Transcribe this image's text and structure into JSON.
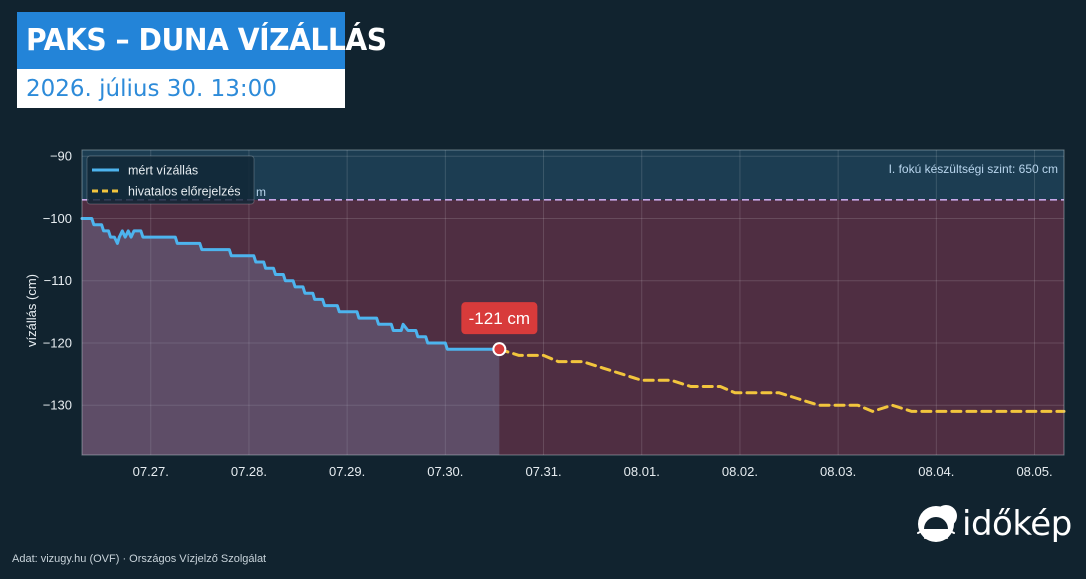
{
  "header": {
    "title": "PAKS – DUNA VÍZÁLLÁS",
    "subtitle": "2026. július 30. 13:00"
  },
  "chart_data": {
    "type": "line",
    "ylabel": "vízállás (cm)",
    "ylim": [
      -138,
      -89
    ],
    "yticks": [
      -90,
      -100,
      -110,
      -120,
      -130
    ],
    "xlim": [
      0,
      10
    ],
    "xtick_positions": [
      0.7,
      1.7,
      2.7,
      3.7,
      4.7,
      5.7,
      6.7,
      7.7,
      8.7,
      9.7
    ],
    "xtick_labels": [
      "07.27.",
      "07.28.",
      "07.29.",
      "07.30.",
      "07.31.",
      "08.01.",
      "08.02.",
      "08.03.",
      "08.04.",
      "08.05."
    ],
    "grid": true,
    "legend": {
      "placement": "top-left",
      "entries": [
        "mért vízállás",
        "hivatalos előrejelzés"
      ]
    },
    "threshold": {
      "y": -97,
      "label": "I. fokú készültségi szint: 650 cm",
      "hidden_label": "m"
    },
    "current": {
      "x": 4.25,
      "y": -121,
      "label": "-121 cm"
    },
    "series": [
      {
        "name": "mért vízállás",
        "color": "#4db4ee",
        "style": "solid",
        "points": [
          [
            0,
            -100
          ],
          [
            0.1,
            -100
          ],
          [
            0.12,
            -101
          ],
          [
            0.2,
            -101
          ],
          [
            0.22,
            -102
          ],
          [
            0.27,
            -102
          ],
          [
            0.29,
            -103
          ],
          [
            0.33,
            -103
          ],
          [
            0.36,
            -104
          ],
          [
            0.38,
            -103
          ],
          [
            0.41,
            -102
          ],
          [
            0.44,
            -103
          ],
          [
            0.47,
            -102
          ],
          [
            0.5,
            -103
          ],
          [
            0.53,
            -102
          ],
          [
            0.6,
            -102
          ],
          [
            0.62,
            -103
          ],
          [
            0.95,
            -103
          ],
          [
            0.97,
            -104
          ],
          [
            1.2,
            -104
          ],
          [
            1.22,
            -105
          ],
          [
            1.5,
            -105
          ],
          [
            1.52,
            -106
          ],
          [
            1.75,
            -106
          ],
          [
            1.77,
            -107
          ],
          [
            1.85,
            -107
          ],
          [
            1.87,
            -108
          ],
          [
            1.95,
            -108
          ],
          [
            1.97,
            -109
          ],
          [
            2.05,
            -109
          ],
          [
            2.07,
            -110
          ],
          [
            2.15,
            -110
          ],
          [
            2.17,
            -111
          ],
          [
            2.25,
            -111
          ],
          [
            2.27,
            -112
          ],
          [
            2.35,
            -112
          ],
          [
            2.37,
            -113
          ],
          [
            2.45,
            -113
          ],
          [
            2.47,
            -114
          ],
          [
            2.6,
            -114
          ],
          [
            2.62,
            -115
          ],
          [
            2.8,
            -115
          ],
          [
            2.82,
            -116
          ],
          [
            3.0,
            -116
          ],
          [
            3.02,
            -117
          ],
          [
            3.15,
            -117
          ],
          [
            3.17,
            -118
          ],
          [
            3.25,
            -118
          ],
          [
            3.27,
            -117
          ],
          [
            3.32,
            -118
          ],
          [
            3.4,
            -118
          ],
          [
            3.42,
            -119
          ],
          [
            3.5,
            -119
          ],
          [
            3.52,
            -120
          ],
          [
            3.7,
            -120
          ],
          [
            3.72,
            -121
          ],
          [
            4.25,
            -121
          ]
        ]
      },
      {
        "name": "hivatalos előrejelzés",
        "color": "#f2c53d",
        "style": "dashed",
        "points": [
          [
            4.25,
            -121
          ],
          [
            4.45,
            -122
          ],
          [
            4.7,
            -122
          ],
          [
            4.85,
            -123
          ],
          [
            5.1,
            -123
          ],
          [
            5.3,
            -124
          ],
          [
            5.5,
            -125
          ],
          [
            5.7,
            -126
          ],
          [
            6.0,
            -126
          ],
          [
            6.2,
            -127
          ],
          [
            6.5,
            -127
          ],
          [
            6.65,
            -128
          ],
          [
            7.1,
            -128
          ],
          [
            7.3,
            -129
          ],
          [
            7.5,
            -130
          ],
          [
            7.9,
            -130
          ],
          [
            8.05,
            -131
          ],
          [
            8.25,
            -130
          ],
          [
            8.45,
            -131
          ],
          [
            9.0,
            -131
          ],
          [
            9.3,
            -131
          ],
          [
            10.0,
            -131
          ]
        ]
      }
    ]
  },
  "footer": {
    "source": "Adat: vizugy.hu (OVF) · Országos Vízjelző Szolgálat",
    "logo_text": "időkép"
  },
  "colors": {
    "background": "#11232f",
    "title_bar": "#2384d8",
    "measured": "#4db4ee",
    "forecast": "#f2c53d",
    "threshold": "#c8a8e8",
    "danger_zone": "#4f2e42",
    "safe_zone": "#1c3d52",
    "badge": "#d83b3b"
  },
  "icons": [
    "idokep-logo-icon"
  ]
}
